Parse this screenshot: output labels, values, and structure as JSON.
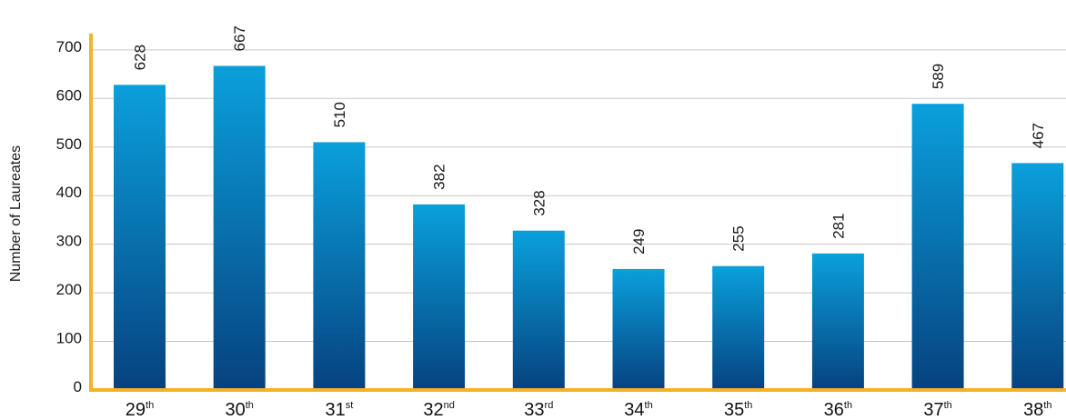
{
  "chart_data": {
    "type": "bar",
    "title": "",
    "ylabel": "Number of Laureates",
    "xlabel": "",
    "ylim": [
      0,
      750
    ],
    "yticks": [
      0,
      100,
      200,
      300,
      400,
      500,
      600,
      700
    ],
    "categories": [
      {
        "num": "29",
        "suffix": "th"
      },
      {
        "num": "30",
        "suffix": "th"
      },
      {
        "num": "31",
        "suffix": "st"
      },
      {
        "num": "32",
        "suffix": "nd"
      },
      {
        "num": "33",
        "suffix": "rd"
      },
      {
        "num": "34",
        "suffix": "th"
      },
      {
        "num": "35",
        "suffix": "th"
      },
      {
        "num": "36",
        "suffix": "th"
      },
      {
        "num": "37",
        "suffix": "th"
      },
      {
        "num": "38",
        "suffix": "th"
      }
    ],
    "values": [
      628,
      667,
      510,
      382,
      328,
      249,
      255,
      281,
      589,
      467
    ],
    "grid": true,
    "colors": {
      "bar_top": "#0aa0dc",
      "bar_bottom": "#06427f",
      "axis": "#f4b323",
      "grid": "#c8c8c8"
    }
  }
}
